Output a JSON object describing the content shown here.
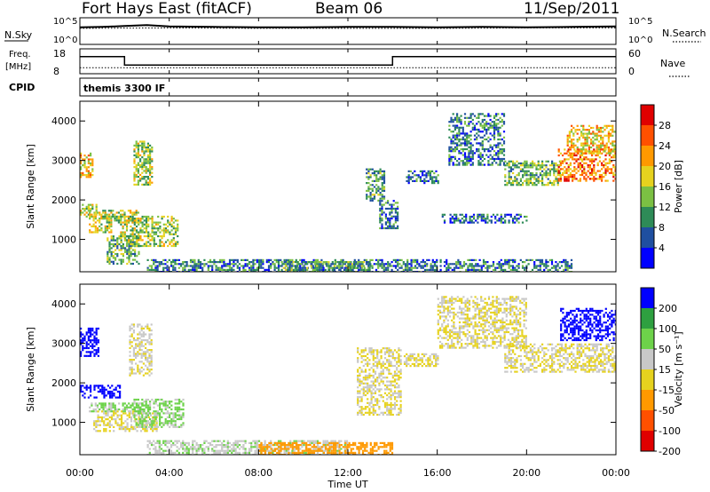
{
  "header": {
    "station": "Fort Hays East (fitACF)",
    "beam": "Beam 06",
    "date": "11/Sep/2011"
  },
  "panels": {
    "noise": {
      "left_label": "N.Sky",
      "right_label": "N.Search",
      "left_ticks": [
        "10^5",
        "10^0"
      ],
      "right_ticks": [
        "10^5",
        "10^0"
      ]
    },
    "freq": {
      "left_label_1": "Freq.",
      "left_label_2": "[MHz]",
      "right_label": "Nave",
      "left_ticks": [
        "18",
        "8"
      ],
      "right_ticks": [
        "60",
        "0"
      ]
    },
    "cpid": {
      "label": "CPID",
      "text": "themis 3300 IF"
    },
    "power": {
      "ylabel": "Slant Range [km]",
      "colorbar_label": "Power [dB]",
      "colorbar_ticks": [
        "28",
        "24",
        "20",
        "16",
        "12",
        "8",
        "4"
      ]
    },
    "velocity": {
      "ylabel": "Slant Range [km]",
      "colorbar_label": "Velocity [m s⁻¹]",
      "colorbar_ticks": [
        "200",
        "100",
        "50",
        "15",
        "-15",
        "-50",
        "-100",
        "-200"
      ]
    }
  },
  "xaxis": {
    "label": "Time UT",
    "ticks": [
      "00:00",
      "04:00",
      "08:00",
      "12:00",
      "16:00",
      "20:00",
      "00:00"
    ]
  },
  "colors": {
    "power_scale": [
      "#0000ff",
      "#1f4fa0",
      "#2e8b57",
      "#7bc043",
      "#e6d21e",
      "#ff9900",
      "#ff5000",
      "#e00000"
    ],
    "velocity_scale": [
      "#0000ff",
      "#2ea040",
      "#6dd24a",
      "#c8c8c8",
      "#e6d21e",
      "#ff9900",
      "#ff5000",
      "#e00000"
    ]
  },
  "chart_data": [
    {
      "type": "heatmap",
      "name": "Power",
      "xlabel": "Time UT",
      "ylabel": "Slant Range [km]",
      "xlim": [
        0,
        24
      ],
      "ylim": [
        180,
        4500
      ],
      "yticks": [
        1000,
        2000,
        3000,
        4000
      ],
      "colorbar": {
        "label": "Power [dB]",
        "range": [
          0,
          30
        ]
      },
      "regions": [
        {
          "t0": 0.0,
          "t1": 0.6,
          "r0": 2600,
          "r1": 3200,
          "value": 18
        },
        {
          "t0": 0.0,
          "t1": 0.7,
          "r0": 1600,
          "r1": 1900,
          "value": 14
        },
        {
          "t0": 0.4,
          "t1": 1.4,
          "r0": 1200,
          "r1": 1700,
          "value": 16
        },
        {
          "t0": 1.0,
          "t1": 2.6,
          "r0": 1450,
          "r1": 1750,
          "value": 14
        },
        {
          "t0": 1.2,
          "t1": 2.6,
          "r0": 400,
          "r1": 1100,
          "value": 12
        },
        {
          "t0": 1.8,
          "t1": 4.4,
          "r0": 850,
          "r1": 1600,
          "value": 14
        },
        {
          "t0": 2.4,
          "t1": 3.2,
          "r0": 2400,
          "r1": 3500,
          "value": 14
        },
        {
          "t0": 3.0,
          "t1": 22.0,
          "r0": 180,
          "r1": 500,
          "value": 8
        },
        {
          "t0": 9.0,
          "t1": 13.0,
          "r0": 180,
          "r1": 450,
          "value": 10
        },
        {
          "t0": 12.8,
          "t1": 13.6,
          "r0": 2000,
          "r1": 2800,
          "value": 10
        },
        {
          "t0": 13.4,
          "t1": 14.2,
          "r0": 1300,
          "r1": 2000,
          "value": 8
        },
        {
          "t0": 14.6,
          "t1": 16.0,
          "r0": 2450,
          "r1": 2750,
          "value": 8
        },
        {
          "t0": 16.2,
          "t1": 20.0,
          "r0": 1450,
          "r1": 1650,
          "value": 6
        },
        {
          "t0": 16.5,
          "t1": 19.0,
          "r0": 2900,
          "r1": 4200,
          "value": 8
        },
        {
          "t0": 19.0,
          "t1": 21.5,
          "r0": 2400,
          "r1": 3000,
          "value": 12
        },
        {
          "t0": 21.4,
          "t1": 24.0,
          "r0": 2500,
          "r1": 3300,
          "value": 22
        },
        {
          "t0": 21.8,
          "t1": 24.0,
          "r0": 3200,
          "r1": 3900,
          "value": 18
        }
      ]
    },
    {
      "type": "heatmap",
      "name": "Velocity",
      "xlabel": "Time UT",
      "ylabel": "Slant Range [km]",
      "xlim": [
        0,
        24
      ],
      "ylim": [
        180,
        4500
      ],
      "yticks": [
        1000,
        2000,
        3000,
        4000
      ],
      "colorbar": {
        "label": "Velocity [m s⁻¹]",
        "range": [
          -200,
          200
        ]
      },
      "regions": [
        {
          "t0": 0.0,
          "t1": 0.8,
          "r0": 2700,
          "r1": 3400,
          "value": 200
        },
        {
          "t0": 0.0,
          "t1": 1.8,
          "r0": 1650,
          "r1": 1950,
          "value": 200
        },
        {
          "t0": 0.4,
          "t1": 2.8,
          "r0": 1300,
          "r1": 1500,
          "value": 40
        },
        {
          "t0": 0.6,
          "t1": 3.4,
          "r0": 800,
          "r1": 1300,
          "value": 0
        },
        {
          "t0": 2.4,
          "t1": 4.6,
          "r0": 900,
          "r1": 1600,
          "value": 40
        },
        {
          "t0": 2.2,
          "t1": 3.2,
          "r0": 2200,
          "r1": 3500,
          "value": 5
        },
        {
          "t0": 3.0,
          "t1": 12.0,
          "r0": 180,
          "r1": 550,
          "value": 20
        },
        {
          "t0": 8.0,
          "t1": 14.0,
          "r0": 180,
          "r1": 500,
          "value": -50
        },
        {
          "t0": 12.4,
          "t1": 14.4,
          "r0": 1200,
          "r1": 2900,
          "value": 0
        },
        {
          "t0": 14.5,
          "t1": 16.0,
          "r0": 2450,
          "r1": 2750,
          "value": 0
        },
        {
          "t0": 16.0,
          "t1": 20.0,
          "r0": 2900,
          "r1": 4200,
          "value": 0
        },
        {
          "t0": 19.0,
          "t1": 24.0,
          "r0": 2300,
          "r1": 3000,
          "value": 0
        },
        {
          "t0": 21.5,
          "t1": 24.0,
          "r0": 3100,
          "r1": 3900,
          "value": 200
        }
      ]
    },
    {
      "type": "line",
      "name": "Noise",
      "ylabel": "N.Sky",
      "ylim": [
        0,
        5
      ],
      "series": [
        {
          "name": "N.Sky",
          "x": [
            0,
            1,
            2,
            3,
            4,
            6,
            8,
            10,
            12,
            14,
            16,
            18,
            20,
            22,
            24
          ],
          "values": [
            3.3,
            3.4,
            3.6,
            3.8,
            3.5,
            3.4,
            3.3,
            3.3,
            3.4,
            3.4,
            3.3,
            3.4,
            3.3,
            3.4,
            3.5
          ]
        },
        {
          "name": "N.Search",
          "x": [
            0,
            4,
            8,
            12,
            16,
            20,
            24
          ],
          "values": [
            3.1,
            3.2,
            3.1,
            3.1,
            3.1,
            3.2,
            3.2
          ]
        }
      ]
    },
    {
      "type": "line",
      "name": "Frequency / Nave",
      "ylabel": "Freq. [MHz]",
      "ylim": [
        8,
        18
      ],
      "series": [
        {
          "name": "Freq.",
          "x": [
            0,
            2.0,
            2.0,
            14.0,
            14.0,
            24
          ],
          "values": [
            15.2,
            15.2,
            11.2,
            11.2,
            15.2,
            15.2
          ]
        },
        {
          "name": "Nave",
          "x": [
            0,
            24
          ],
          "values": [
            12,
            12
          ]
        }
      ]
    }
  ]
}
